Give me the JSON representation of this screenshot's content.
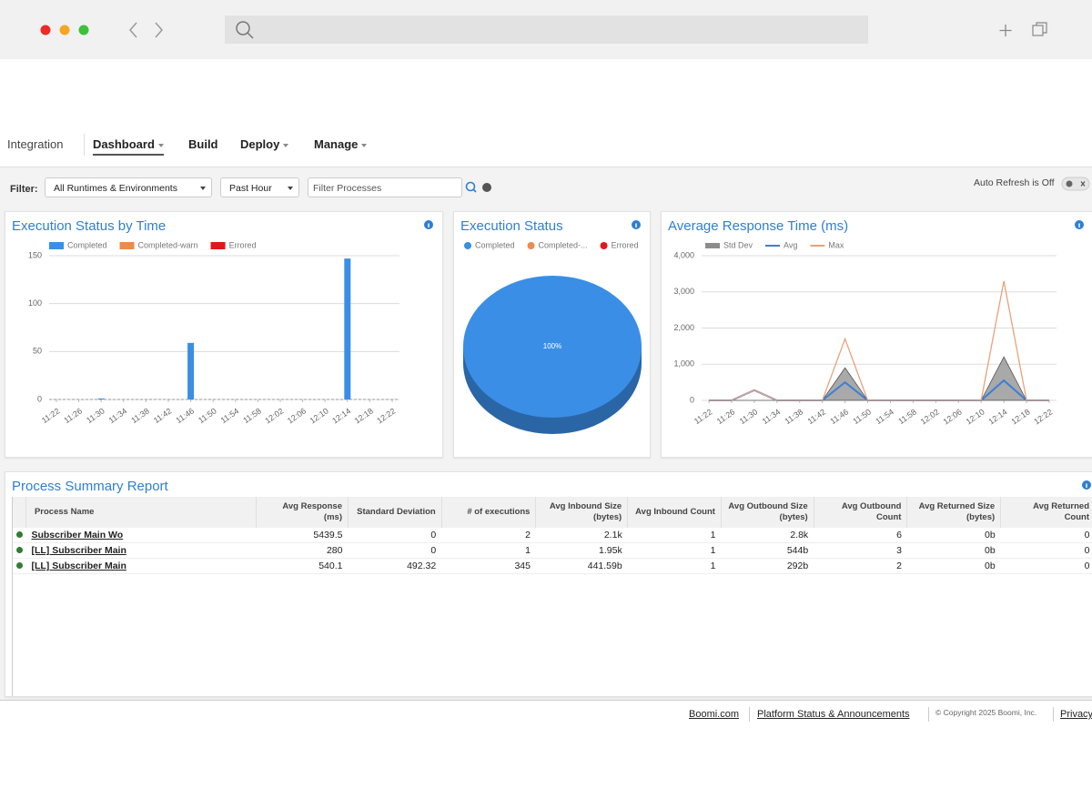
{
  "nav": {
    "items": [
      "Integration",
      "Dashboard",
      "Build",
      "Deploy",
      "Manage"
    ]
  },
  "filter": {
    "label": "Filter:",
    "runtime": "All Runtimes & Environments",
    "period": "Past Hour",
    "search_placeholder": "Filter Processes",
    "auto_refresh": "Auto Refresh is Off"
  },
  "chart_data": [
    {
      "type": "bar",
      "title": "Execution Status by Time",
      "categories": [
        "11:22",
        "11:26",
        "11:30",
        "11:34",
        "11:38",
        "11:42",
        "11:46",
        "11:50",
        "11:54",
        "11:58",
        "12:02",
        "12:06",
        "12:10",
        "12:14",
        "12:18",
        "12:22"
      ],
      "series": [
        {
          "name": "Completed",
          "color": "#3a8ee6",
          "values": [
            0,
            0,
            1,
            0,
            0,
            0,
            59,
            0,
            0,
            0,
            0,
            0,
            0,
            147,
            0,
            0
          ]
        },
        {
          "name": "Completed-warn",
          "color": "#f08a4b",
          "values": [
            0,
            0,
            0,
            0,
            0,
            0,
            0,
            0,
            0,
            0,
            0,
            0,
            0,
            0,
            0,
            0
          ]
        },
        {
          "name": "Errored",
          "color": "#e3161b",
          "values": [
            0,
            0,
            0,
            0,
            0,
            0,
            0,
            0,
            0,
            0,
            0,
            0,
            0,
            0,
            0,
            0
          ]
        }
      ],
      "ylim": [
        0,
        150
      ],
      "yticks": [
        0,
        50,
        100,
        150
      ],
      "grid": true
    },
    {
      "type": "pie",
      "title": "Execution Status",
      "categories": [
        "Completed",
        "Completed-...",
        "Errored"
      ],
      "colors": [
        "#3a8ee6",
        "#f08a4b",
        "#e3161b"
      ],
      "values": [
        100,
        0,
        0
      ],
      "value_labels": [
        "100%",
        null,
        null
      ]
    },
    {
      "type": "line",
      "title": "Average Response Time (ms)",
      "categories": [
        "11:22",
        "11:26",
        "11:30",
        "11:34",
        "11:38",
        "11:42",
        "11:46",
        "11:50",
        "11:54",
        "11:58",
        "12:02",
        "12:06",
        "12:10",
        "12:14",
        "12:18",
        "12:22"
      ],
      "series": [
        {
          "name": "Std Dev",
          "color": "#8c8c8c",
          "style": "area",
          "values": [
            0,
            0,
            0,
            0,
            0,
            0,
            900,
            0,
            0,
            0,
            0,
            0,
            0,
            1200,
            0,
            0
          ]
        },
        {
          "name": "Avg",
          "color": "#3a7fd5",
          "style": "line",
          "values": [
            0,
            0,
            280,
            0,
            0,
            0,
            500,
            0,
            0,
            0,
            0,
            0,
            0,
            550,
            0,
            0
          ]
        },
        {
          "name": "Max",
          "color": "#e8a27c",
          "style": "line",
          "values": [
            0,
            0,
            280,
            0,
            0,
            0,
            1700,
            0,
            0,
            0,
            0,
            0,
            0,
            3300,
            0,
            0
          ]
        }
      ],
      "ylim": [
        0,
        4000
      ],
      "yticks": [
        0,
        {
          "value": 1000,
          "label": "1,000"
        },
        {
          "value": 2000,
          "label": "2,000"
        },
        {
          "value": 3000,
          "label": "3,000"
        },
        {
          "value": 4000,
          "label": "4,000"
        }
      ],
      "grid": true
    }
  ],
  "report": {
    "title": "Process Summary Report",
    "columns": [
      "Process Name",
      "Avg Response (ms)",
      "Standard Deviation",
      "# of executions",
      "Avg Inbound Size (bytes)",
      "Avg Inbound Count",
      "Avg Outbound Size (bytes)",
      "Avg Outbound Count",
      "Avg Returned Size (bytes)",
      "Avg Returned Count"
    ],
    "rows": [
      [
        "Subscriber Main Wo",
        "5439.5",
        "0",
        "2",
        "2.1k",
        "1",
        "2.8k",
        "6",
        "0b",
        "0"
      ],
      [
        "[LL] Subscriber Main",
        "280",
        "0",
        "1",
        "1.95k",
        "1",
        "544b",
        "3",
        "0b",
        "0"
      ],
      [
        "[LL] Subscriber Main",
        "540.1",
        "492.32",
        "345",
        "441.59b",
        "1",
        "292b",
        "2",
        "0b",
        "0"
      ]
    ]
  },
  "footer": {
    "links": [
      "Boomi.com",
      "Platform Status & Announcements"
    ],
    "copyright": "© Copyright 2025 Boomi, Inc.",
    "privacy": "Privacy"
  }
}
